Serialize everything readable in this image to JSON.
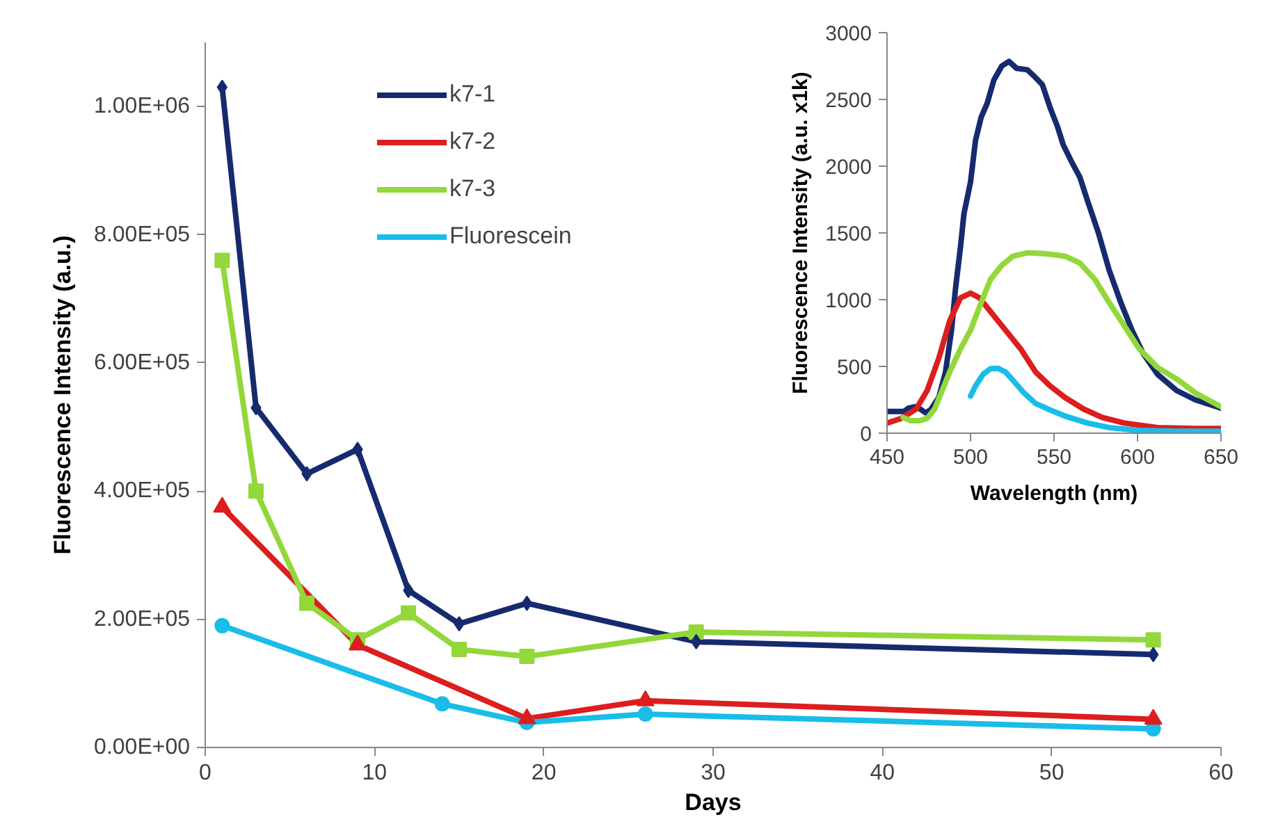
{
  "chart_data": [
    {
      "type": "line",
      "xlabel": "Days",
      "ylabel": "Fluorescence Intensity (a.u.)",
      "xlim": [
        0,
        60
      ],
      "xticks": [
        0,
        10,
        20,
        30,
        40,
        50,
        60
      ],
      "ylim": [
        0,
        1100000
      ],
      "yticks": [
        {
          "value": 0,
          "label": "0.00E+00"
        },
        {
          "value": 200000,
          "label": "2.00E+05"
        },
        {
          "value": 400000,
          "label": "4.00E+05"
        },
        {
          "value": 600000,
          "label": "6.00E+05"
        },
        {
          "value": 800000,
          "label": "8.00E+05"
        },
        {
          "value": 1000000,
          "label": "1.00E+06"
        }
      ],
      "grid": false,
      "legend": "top",
      "line_style": "solid",
      "series": [
        {
          "name": "k7-1",
          "color": "#162a6e",
          "marker": "diamond",
          "x": [
            1,
            3,
            6,
            9,
            12,
            15,
            19,
            29,
            56
          ],
          "values": [
            1030000,
            530000,
            427000,
            465000,
            245000,
            193000,
            225000,
            165000,
            145000
          ]
        },
        {
          "name": "k7-2",
          "color": "#dc1e1e",
          "marker": "triangle",
          "x": [
            1,
            9,
            19,
            26,
            56
          ],
          "values": [
            375000,
            160000,
            45000,
            73000,
            44000
          ]
        },
        {
          "name": "k7-3",
          "color": "#92d83a",
          "marker": "square",
          "x": [
            1,
            3,
            6,
            9,
            12,
            15,
            19,
            29,
            56
          ],
          "values": [
            760000,
            400000,
            225000,
            168000,
            210000,
            153000,
            142000,
            180000,
            168000
          ]
        },
        {
          "name": "Fluorescein",
          "color": "#19bde8",
          "marker": "circle",
          "x": [
            1,
            14,
            19,
            26,
            56
          ],
          "values": [
            190000,
            68000,
            39000,
            52000,
            29000
          ]
        }
      ]
    },
    {
      "type": "line",
      "xlabel": "Wavelength (nm)",
      "ylabel": "Fluorescence Intensity (a.u. x1k)",
      "xlim": [
        450,
        650
      ],
      "xticks": [
        450,
        500,
        550,
        600,
        650
      ],
      "ylim": [
        0,
        3000
      ],
      "yticks": [
        0,
        500,
        1000,
        1500,
        2000,
        2500,
        3000
      ],
      "grid": false,
      "legend": false,
      "marker": "none",
      "line_style": "solid",
      "series": [
        {
          "color": "#162a6e",
          "x": [
            450,
            460,
            463,
            467,
            470,
            473,
            476,
            481,
            485,
            488.6,
            491,
            494,
            496,
            500,
            503,
            506.4,
            510,
            514,
            518.7,
            523,
            527.6,
            534,
            539,
            543,
            547.7,
            552,
            555.5,
            561,
            565.5,
            570,
            576.6,
            583,
            590,
            596.7,
            603.4,
            612,
            623.5,
            634.6,
            650
          ],
          "values": [
            163,
            163,
            188,
            198,
            180,
            153,
            174,
            267,
            458,
            771,
            1083,
            1396,
            1639,
            1882,
            2194,
            2368,
            2472,
            2646,
            2750,
            2785,
            2733,
            2722,
            2663,
            2611,
            2437,
            2299,
            2160,
            2021,
            1917,
            1743,
            1500,
            1222,
            979,
            771,
            597,
            441,
            319,
            250,
            188
          ]
        },
        {
          "color": "#dc1e1e",
          "x": [
            450,
            458.5,
            467.4,
            474,
            481,
            487.5,
            494,
            500,
            505.3,
            512,
            521,
            530,
            539,
            547.7,
            556.6,
            567.7,
            578.9,
            592,
            612,
            634.6,
            650
          ],
          "values": [
            76,
            111,
            181,
            319,
            562,
            840,
            1014,
            1049,
            1014,
            910,
            771,
            632,
            458,
            354,
            267,
            181,
            118,
            76,
            42,
            35,
            35
          ]
        },
        {
          "color": "#92d83a",
          "x": [
            459.6,
            464,
            469.6,
            474,
            478.5,
            483,
            487.5,
            494,
            500,
            505.3,
            512,
            518.7,
            525.4,
            534,
            545.4,
            556.6,
            565.5,
            574.4,
            583,
            592,
            601,
            612,
            623.5,
            634.6,
            650
          ],
          "values": [
            118,
            94,
            94,
            111,
            181,
            319,
            458,
            632,
            771,
            944,
            1153,
            1257,
            1326,
            1351,
            1344,
            1326,
            1274,
            1153,
            979,
            806,
            632,
            493,
            406,
            302,
            198
          ]
        },
        {
          "color": "#19bde8",
          "x": [
            500,
            503,
            507.5,
            512,
            516.4,
            521,
            525.4,
            532,
            539,
            547.7,
            556.6,
            570,
            583,
            601,
            623.5,
            650
          ],
          "values": [
            278,
            354,
            441,
            483,
            486,
            458,
            396,
            302,
            222,
            174,
            128,
            76,
            42,
            21,
            14,
            14
          ]
        }
      ]
    }
  ]
}
